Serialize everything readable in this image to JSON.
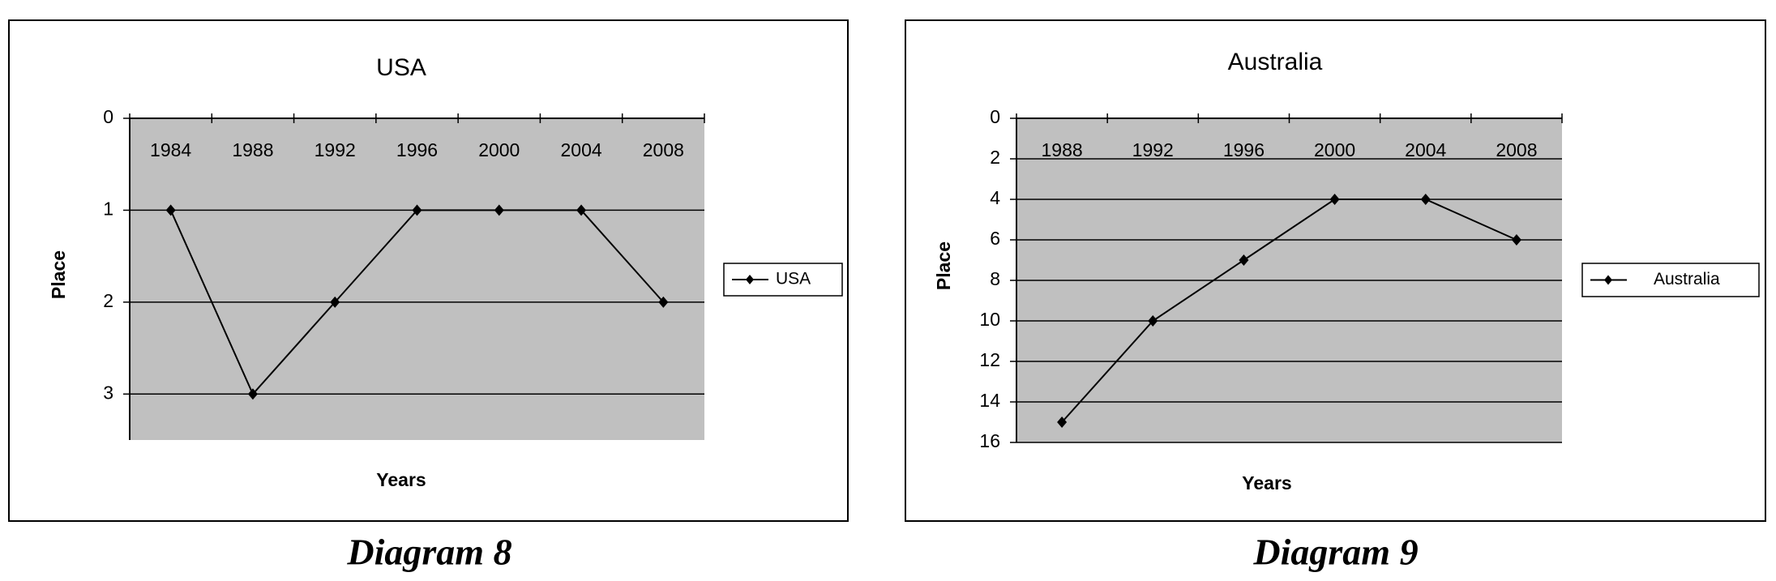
{
  "chart_data": [
    {
      "type": "line",
      "title": "USA",
      "x_label": "Years",
      "y_label": "Place",
      "caption": "Diagram 8",
      "categories": [
        "1984",
        "1988",
        "1992",
        "1996",
        "2000",
        "2004",
        "2008"
      ],
      "series": [
        {
          "name": "USA",
          "color": "#000000",
          "values": [
            1,
            3,
            2,
            1,
            1,
            1,
            2
          ]
        }
      ],
      "ylim": [
        0,
        3.5
      ],
      "yticks": [
        0,
        1,
        2,
        3
      ],
      "y_inverted": true,
      "grid": true,
      "legend": "right",
      "plot_background": "#c0c0c0"
    },
    {
      "type": "line",
      "title": "Australia",
      "x_label": "Years",
      "y_label": "Place",
      "caption": "Diagram 9",
      "categories": [
        "1988",
        "1992",
        "1996",
        "2000",
        "2004",
        "2008"
      ],
      "series": [
        {
          "name": "Australia",
          "color": "#000000",
          "values": [
            15,
            10,
            7,
            4,
            4,
            6
          ]
        }
      ],
      "ylim": [
        0,
        16
      ],
      "yticks": [
        0,
        2,
        4,
        6,
        8,
        10,
        12,
        14,
        16
      ],
      "y_inverted": true,
      "grid": true,
      "legend": "right",
      "plot_background": "#c0c0c0"
    }
  ]
}
